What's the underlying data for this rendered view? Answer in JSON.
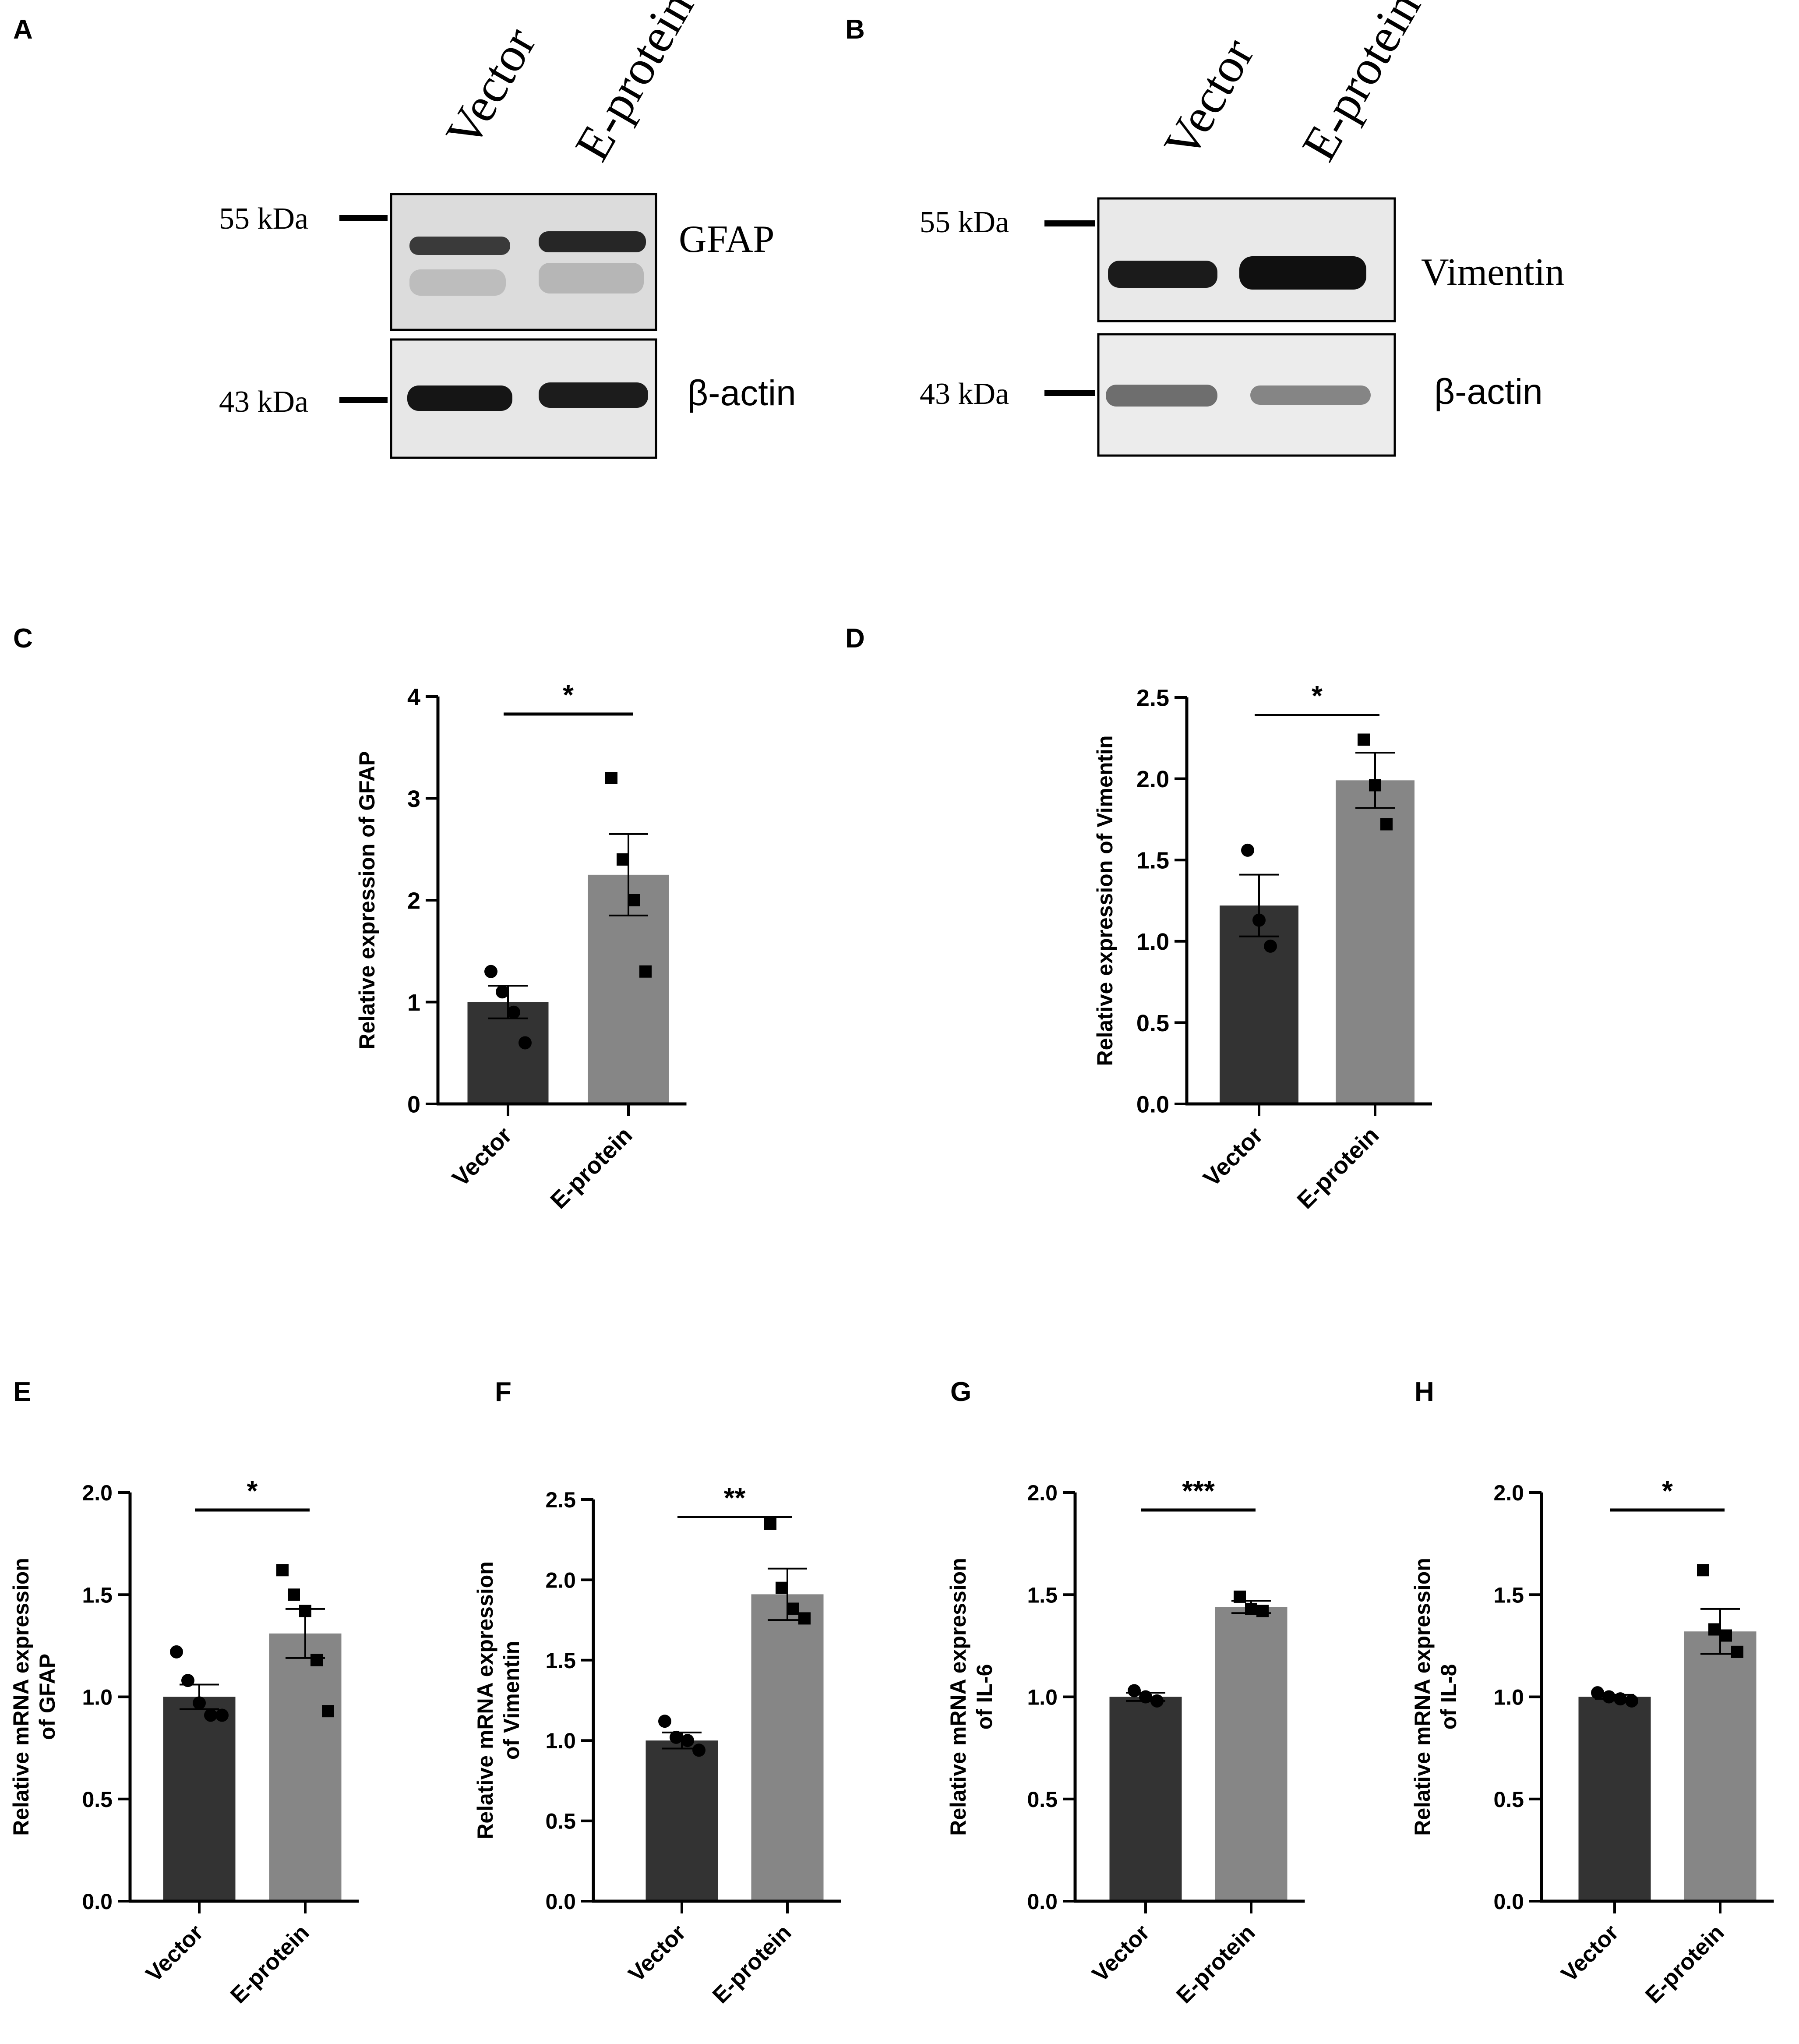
{
  "colors": {
    "vector_bar": "#333333",
    "eprotein_bar": "#868686",
    "axis": "#000000",
    "blot_bg": "#e6e6e6"
  },
  "blots": [
    {
      "panel": "A",
      "lanes": [
        "Vector",
        "E-protein"
      ],
      "rows": [
        {
          "marker": "55 kDa",
          "protein": "GFAP"
        },
        {
          "marker": "43 kDa",
          "protein": "β-actin"
        }
      ]
    },
    {
      "panel": "B",
      "lanes": [
        "Vector",
        "E-protein"
      ],
      "rows": [
        {
          "marker": "55 kDa",
          "protein": "Vimentin"
        },
        {
          "marker": "43 kDa",
          "protein": "β-actin"
        }
      ]
    }
  ],
  "chart_data": [
    {
      "panel": "C",
      "type": "bar",
      "categories": [
        "Vector",
        "E-protein"
      ],
      "values": [
        1.0,
        2.25
      ],
      "sem": [
        0.16,
        0.4
      ],
      "points": [
        [
          1.3,
          1.1,
          0.9,
          0.6
        ],
        [
          3.2,
          2.4,
          2.0,
          1.3
        ]
      ],
      "ylabel": "Relative expression of  GFAP",
      "ylim": [
        0,
        4
      ],
      "yticks": [
        "0",
        "1",
        "2",
        "3",
        "4"
      ],
      "significance": "*"
    },
    {
      "panel": "D",
      "type": "bar",
      "categories": [
        "Vector",
        "E-protein"
      ],
      "values": [
        1.22,
        1.99
      ],
      "sem": [
        0.19,
        0.17
      ],
      "points": [
        [
          1.56,
          1.13,
          0.97
        ],
        [
          2.24,
          1.96,
          1.72
        ]
      ],
      "ylabel": "Relative expression of  Vimentin",
      "ylim": [
        0,
        2.5
      ],
      "yticks": [
        "0.0",
        "0.5",
        "1.0",
        "1.5",
        "2.0",
        "2.5"
      ],
      "significance": "*"
    },
    {
      "panel": "E",
      "type": "bar",
      "categories": [
        "Vector",
        "E-protein"
      ],
      "values": [
        1.0,
        1.31
      ],
      "sem": [
        0.06,
        0.12
      ],
      "points": [
        [
          1.22,
          1.08,
          0.97,
          0.91,
          0.91
        ],
        [
          1.62,
          1.5,
          1.42,
          1.18,
          0.93
        ]
      ],
      "ylabel": [
        "Relative mRNA expression",
        "of  GFAP"
      ],
      "ylim": [
        0,
        2.0
      ],
      "yticks": [
        "0.0",
        "0.5",
        "1.0",
        "1.5",
        "2.0"
      ],
      "significance": "*"
    },
    {
      "panel": "F",
      "type": "bar",
      "categories": [
        "Vector",
        "E-protein"
      ],
      "values": [
        1.0,
        1.91
      ],
      "sem": [
        0.05,
        0.16
      ],
      "points": [
        [
          1.12,
          1.02,
          1.0,
          0.94
        ],
        [
          2.35,
          1.95,
          1.82,
          1.76
        ]
      ],
      "ylabel": [
        "Relative mRNA expression",
        "of Vimentin"
      ],
      "ylim": [
        0,
        2.5
      ],
      "yticks": [
        "0.0",
        "0.5",
        "1.0",
        "1.5",
        "2.0",
        "2.5"
      ],
      "significance": "**"
    },
    {
      "panel": "G",
      "type": "bar",
      "categories": [
        "Vector",
        "E-protein"
      ],
      "values": [
        1.0,
        1.44
      ],
      "sem": [
        0.02,
        0.03
      ],
      "points": [
        [
          1.03,
          1.0,
          0.98
        ],
        [
          1.49,
          1.43,
          1.42
        ]
      ],
      "ylabel": [
        "Relative mRNA expression",
        "of IL-6"
      ],
      "ylim": [
        0,
        2.0
      ],
      "yticks": [
        "0.0",
        "0.5",
        "1.0",
        "1.5",
        "2.0"
      ],
      "significance": "***"
    },
    {
      "panel": "H",
      "type": "bar",
      "categories": [
        "Vector",
        "E-protein"
      ],
      "values": [
        1.0,
        1.32
      ],
      "sem": [
        0.01,
        0.11
      ],
      "points": [
        [
          1.02,
          1.0,
          0.99,
          0.98
        ],
        [
          1.62,
          1.33,
          1.3,
          1.22
        ]
      ],
      "ylabel": [
        "Relative mRNA expression",
        "of IL-8"
      ],
      "ylim": [
        0,
        2.0
      ],
      "yticks": [
        "0.0",
        "0.5",
        "1.0",
        "1.5",
        "2.0"
      ],
      "significance": "*"
    }
  ]
}
